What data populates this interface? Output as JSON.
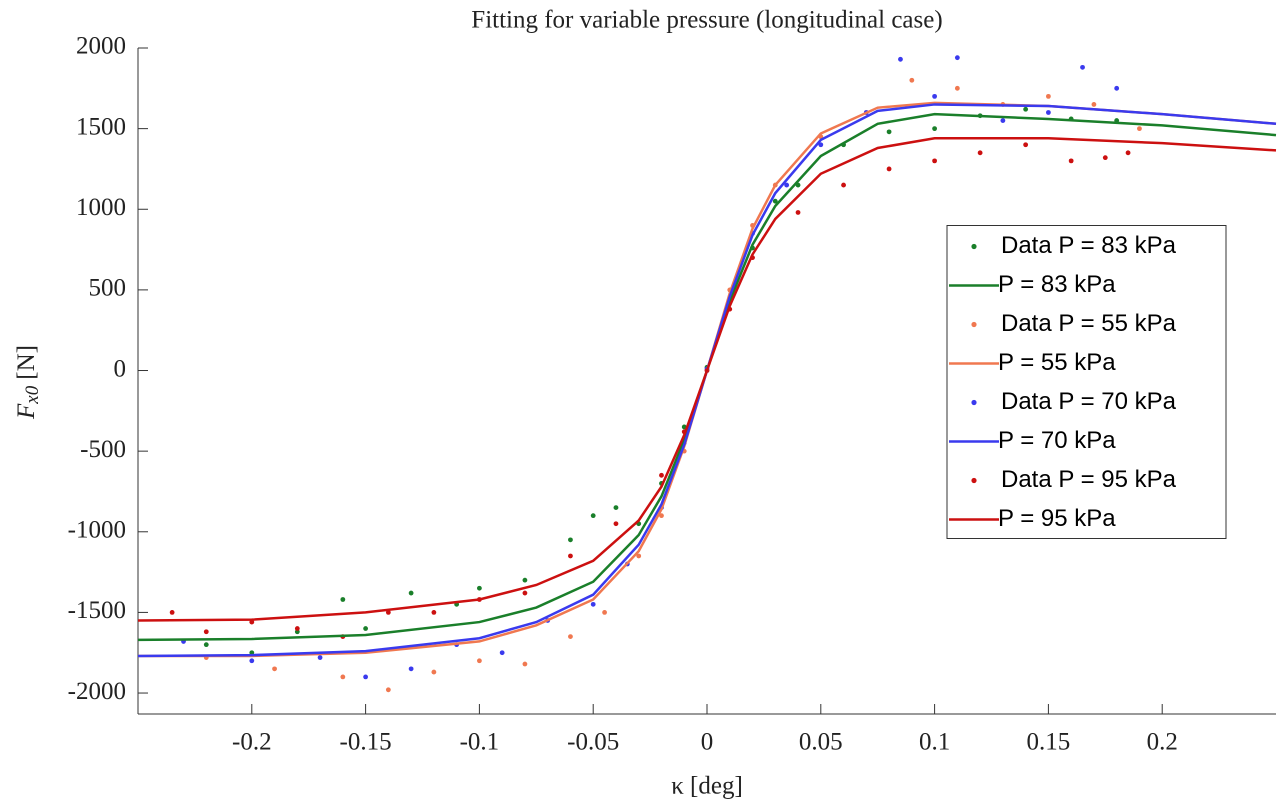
{
  "chart_data": {
    "type": "scatter",
    "title": "Fitting for variable pressure (longitudinal case)",
    "xlabel": "κ [deg]",
    "ylabel": {
      "symbol": "F",
      "subscript": "x0",
      "unit": "[N]"
    },
    "xlim": [
      -0.25,
      0.25
    ],
    "ylim": [
      -2130,
      2000
    ],
    "xticks": [
      -0.2,
      -0.15,
      -0.1,
      -0.05,
      0,
      0.05,
      0.1,
      0.15,
      0.2
    ],
    "yticks": [
      -2000,
      -1500,
      -1000,
      -500,
      0,
      500,
      1000,
      1500,
      2000
    ],
    "legend": "east",
    "series": [
      {
        "name": "Data P = 83 kPa",
        "color": "#1a7f2a",
        "style": "markers",
        "x": [
          -0.22,
          -0.2,
          -0.18,
          -0.16,
          -0.15,
          -0.13,
          -0.11,
          -0.1,
          -0.08,
          -0.06,
          -0.05,
          -0.04,
          -0.03,
          -0.02,
          -0.01,
          0,
          0.01,
          0.02,
          0.03,
          0.04,
          0.06,
          0.08,
          0.1,
          0.12,
          0.14,
          0.16,
          0.18
        ],
        "values": [
          -1700,
          -1750,
          -1620,
          -1420,
          -1600,
          -1380,
          -1450,
          -1350,
          -1300,
          -1050,
          -900,
          -850,
          -950,
          -700,
          -350,
          20,
          420,
          760,
          1050,
          1150,
          1400,
          1480,
          1500,
          1580,
          1620,
          1560,
          1550
        ]
      },
      {
        "name": "P = 83 kPa",
        "color": "#1a7f2a",
        "style": "line",
        "x": [
          -0.25,
          -0.2,
          -0.15,
          -0.1,
          -0.075,
          -0.05,
          -0.03,
          -0.02,
          -0.01,
          0,
          0.01,
          0.02,
          0.03,
          0.05,
          0.075,
          0.1,
          0.15,
          0.2,
          0.25
        ],
        "values": [
          -1670,
          -1665,
          -1640,
          -1560,
          -1470,
          -1310,
          -1020,
          -780,
          -430,
          0,
          430,
          780,
          1020,
          1330,
          1530,
          1590,
          1560,
          1520,
          1460
        ]
      },
      {
        "name": "Data P = 55 kPa",
        "color": "#f07850",
        "style": "markers",
        "x": [
          -0.22,
          -0.19,
          -0.16,
          -0.14,
          -0.12,
          -0.1,
          -0.08,
          -0.06,
          -0.045,
          -0.03,
          -0.02,
          -0.01,
          0,
          0.01,
          0.02,
          0.03,
          0.05,
          0.07,
          0.09,
          0.11,
          0.13,
          0.15,
          0.17,
          0.19
        ],
        "values": [
          -1780,
          -1850,
          -1900,
          -1980,
          -1870,
          -1800,
          -1820,
          -1650,
          -1500,
          -1150,
          -900,
          -500,
          0,
          500,
          900,
          1150,
          1450,
          1600,
          1800,
          1750,
          1650,
          1700,
          1650,
          1500
        ]
      },
      {
        "name": "P = 55 kPa",
        "color": "#f07850",
        "style": "line",
        "x": [
          -0.25,
          -0.2,
          -0.15,
          -0.1,
          -0.075,
          -0.05,
          -0.03,
          -0.02,
          -0.01,
          0,
          0.01,
          0.02,
          0.03,
          0.05,
          0.075,
          0.1,
          0.15,
          0.2,
          0.25
        ],
        "values": [
          -1770,
          -1770,
          -1750,
          -1680,
          -1580,
          -1420,
          -1120,
          -860,
          -470,
          0,
          480,
          880,
          1150,
          1470,
          1630,
          1660,
          1640,
          1590,
          1530
        ]
      },
      {
        "name": "Data P = 70 kPa",
        "color": "#3a3aee",
        "style": "markers",
        "x": [
          -0.23,
          -0.2,
          -0.17,
          -0.15,
          -0.13,
          -0.11,
          -0.09,
          -0.07,
          -0.05,
          -0.035,
          -0.02,
          -0.01,
          0,
          0.01,
          0.02,
          0.035,
          0.05,
          0.07,
          0.085,
          0.1,
          0.11,
          0.13,
          0.15,
          0.165,
          0.18
        ],
        "values": [
          -1680,
          -1800,
          -1780,
          -1900,
          -1850,
          -1700,
          -1750,
          -1550,
          -1450,
          -1200,
          -850,
          -450,
          10,
          450,
          850,
          1150,
          1400,
          1600,
          1930,
          1700,
          1940,
          1550,
          1600,
          1880,
          1750
        ]
      },
      {
        "name": "P = 70 kPa",
        "color": "#3a3aee",
        "style": "line",
        "x": [
          -0.25,
          -0.2,
          -0.15,
          -0.1,
          -0.075,
          -0.05,
          -0.03,
          -0.02,
          -0.01,
          0,
          0.01,
          0.02,
          0.03,
          0.05,
          0.075,
          0.1,
          0.15,
          0.2,
          0.25
        ],
        "values": [
          -1770,
          -1765,
          -1740,
          -1660,
          -1560,
          -1390,
          -1080,
          -830,
          -460,
          0,
          460,
          840,
          1100,
          1430,
          1610,
          1650,
          1640,
          1590,
          1530
        ]
      },
      {
        "name": "Data P = 95 kPa",
        "color": "#cc1010",
        "style": "markers",
        "x": [
          -0.235,
          -0.22,
          -0.2,
          -0.18,
          -0.16,
          -0.14,
          -0.12,
          -0.1,
          -0.08,
          -0.06,
          -0.04,
          -0.02,
          -0.01,
          0,
          0.01,
          0.02,
          0.04,
          0.06,
          0.08,
          0.1,
          0.12,
          0.14,
          0.16,
          0.175,
          0.185
        ],
        "values": [
          -1500,
          -1620,
          -1560,
          -1600,
          -1650,
          -1500,
          -1500,
          -1420,
          -1380,
          -1150,
          -950,
          -650,
          -380,
          0,
          380,
          700,
          980,
          1150,
          1250,
          1300,
          1350,
          1400,
          1300,
          1320,
          1350
        ]
      },
      {
        "name": "P = 95 kPa",
        "color": "#cc1010",
        "style": "line",
        "x": [
          -0.25,
          -0.2,
          -0.15,
          -0.1,
          -0.075,
          -0.05,
          -0.03,
          -0.02,
          -0.01,
          0,
          0.01,
          0.02,
          0.03,
          0.05,
          0.075,
          0.1,
          0.15,
          0.2,
          0.25
        ],
        "values": [
          -1550,
          -1545,
          -1500,
          -1420,
          -1330,
          -1180,
          -930,
          -720,
          -400,
          0,
          400,
          720,
          940,
          1220,
          1380,
          1440,
          1440,
          1410,
          1365
        ]
      }
    ]
  }
}
